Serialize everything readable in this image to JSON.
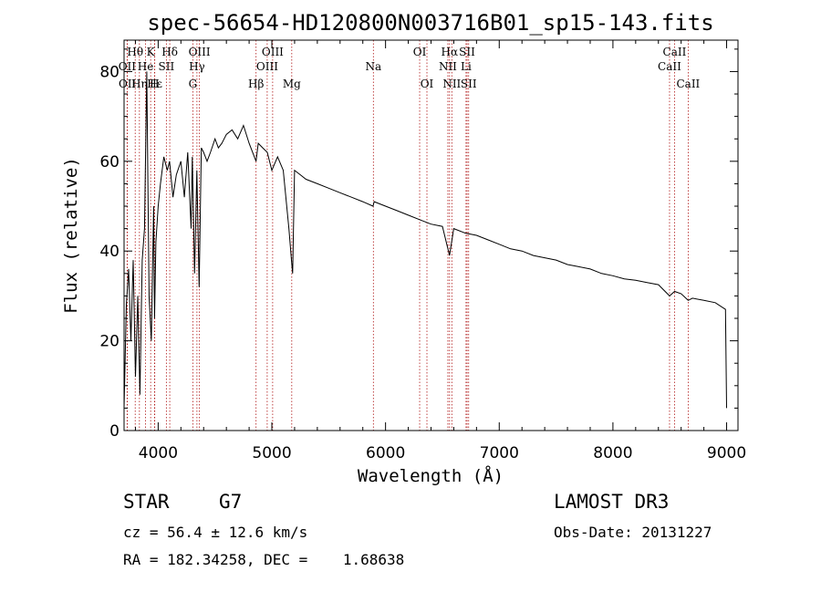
{
  "chart_data": {
    "type": "line",
    "title": "spec-56654-HD120800N003716B01_sp15-143.fits",
    "xlabel": "Wavelength (Å)",
    "ylabel": "Flux (relative)",
    "xlim": [
      3700,
      9100
    ],
    "ylim": [
      0,
      87
    ],
    "xticks": [
      4000,
      5000,
      6000,
      7000,
      8000,
      9000
    ],
    "yticks": [
      0,
      20,
      40,
      60,
      80
    ],
    "series": [
      {
        "name": "flux",
        "x": [
          3700,
          3720,
          3740,
          3760,
          3780,
          3800,
          3820,
          3840,
          3860,
          3880,
          3900,
          3920,
          3940,
          3960,
          3968,
          3980,
          4000,
          4020,
          4050,
          4080,
          4100,
          4130,
          4160,
          4200,
          4230,
          4260,
          4290,
          4300,
          4320,
          4340,
          4360,
          4380,
          4400,
          4430,
          4460,
          4500,
          4530,
          4560,
          4600,
          4650,
          4700,
          4750,
          4800,
          4861,
          4880,
          4920,
          4960,
          5000,
          5050,
          5100,
          5150,
          5172,
          5183,
          5200,
          5250,
          5300,
          5400,
          5500,
          5600,
          5700,
          5800,
          5890,
          5900,
          6000,
          6100,
          6200,
          6300,
          6400,
          6500,
          6563,
          6600,
          6700,
          6800,
          6900,
          7000,
          7100,
          7200,
          7300,
          7400,
          7500,
          7600,
          7700,
          7800,
          7900,
          8000,
          8100,
          8200,
          8300,
          8400,
          8498,
          8542,
          8600,
          8662,
          8700,
          8800,
          8900,
          8990,
          9000
        ],
        "values": [
          5,
          28,
          36,
          20,
          38,
          12,
          30,
          8,
          38,
          45,
          80,
          30,
          20,
          50,
          25,
          42,
          50,
          55,
          61,
          58,
          60,
          52,
          57,
          60,
          52,
          62,
          45,
          61,
          35,
          58,
          32,
          63,
          62,
          60,
          62,
          65,
          63,
          64,
          66,
          67,
          65,
          68,
          64,
          60,
          64,
          63,
          62,
          58,
          61,
          58,
          45,
          38,
          35,
          58,
          57,
          56,
          55,
          54,
          53,
          52,
          51,
          50,
          51,
          50,
          49,
          48,
          47,
          46,
          45.5,
          39,
          45,
          44,
          43.5,
          42.5,
          41.5,
          40.5,
          40,
          39,
          38.5,
          38,
          37,
          36.5,
          36,
          35,
          34.5,
          33.8,
          33.5,
          33,
          32.5,
          30,
          31,
          30.5,
          29,
          29.5,
          29,
          28.5,
          27,
          5
        ]
      }
    ],
    "lines": [
      {
        "name": "Hθ",
        "x": 3798,
        "row": 1
      },
      {
        "name": "OII",
        "x": 3727,
        "row": 2
      },
      {
        "name": "OII",
        "x": 3729,
        "row": 3
      },
      {
        "name": "Hη",
        "x": 3835,
        "row": 3
      },
      {
        "name": "K",
        "x": 3934,
        "row": 1
      },
      {
        "name": "He",
        "x": 3889,
        "row": 2
      },
      {
        "name": "Hε",
        "x": 3970,
        "row": 3
      },
      {
        "name": "H",
        "x": 3968,
        "row": 3
      },
      {
        "name": "SII",
        "x": 4072,
        "row": 2
      },
      {
        "name": "Hδ",
        "x": 4102,
        "row": 1
      },
      {
        "name": "OIII",
        "x": 4363,
        "row": 1
      },
      {
        "name": "Hγ",
        "x": 4341,
        "row": 2
      },
      {
        "name": "G",
        "x": 4305,
        "row": 3
      },
      {
        "name": "Hβ",
        "x": 4861,
        "row": 3
      },
      {
        "name": "OIII",
        "x": 5007,
        "row": 1
      },
      {
        "name": "OIII",
        "x": 4959,
        "row": 2
      },
      {
        "name": "Mg",
        "x": 5175,
        "row": 3
      },
      {
        "name": "Na",
        "x": 5893,
        "row": 2
      },
      {
        "name": "OI",
        "x": 6300,
        "row": 1
      },
      {
        "name": "OI",
        "x": 6364,
        "row": 3
      },
      {
        "name": "Hα",
        "x": 6563,
        "row": 1
      },
      {
        "name": "NII",
        "x": 6548,
        "row": 2
      },
      {
        "name": "NII",
        "x": 6583,
        "row": 3
      },
      {
        "name": "SII",
        "x": 6717,
        "row": 1
      },
      {
        "name": "Li",
        "x": 6708,
        "row": 2
      },
      {
        "name": "SII",
        "x": 6731,
        "row": 3
      },
      {
        "name": "CaII",
        "x": 8542,
        "row": 1
      },
      {
        "name": "CaII",
        "x": 8498,
        "row": 2
      },
      {
        "name": "CaII",
        "x": 8662,
        "row": 3
      }
    ]
  },
  "info": {
    "object_class": "STAR",
    "subclass": "G7",
    "survey": "LAMOST DR3",
    "cz": "cz = 56.4 ± 12.6 km/s",
    "obs_date": "Obs-Date: 20131227",
    "coords": "RA = 182.34258, DEC =    1.68638"
  },
  "colors": {
    "line_marker": "#b01818",
    "spectrum": "#000000"
  }
}
